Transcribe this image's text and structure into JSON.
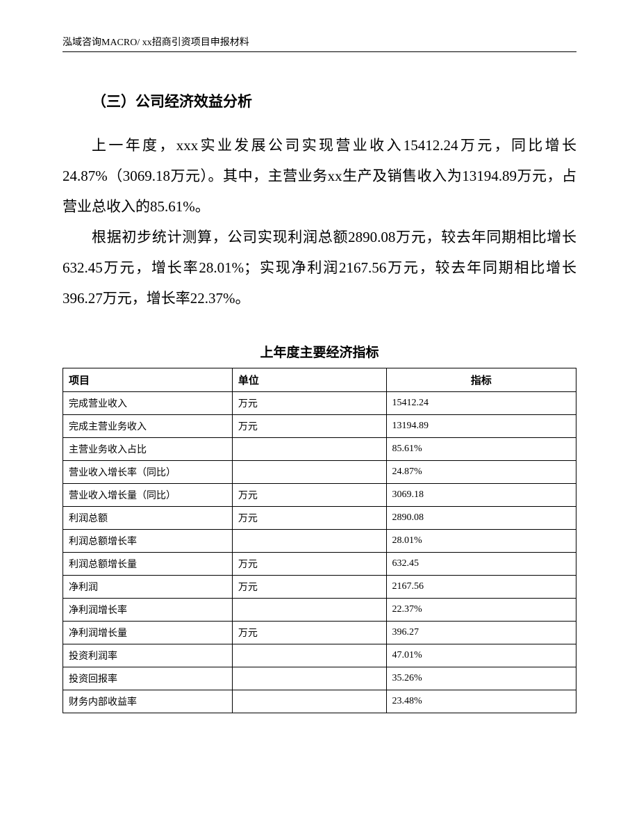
{
  "header": "泓域咨询MACRO/   xx招商引资项目申报材料",
  "section_heading": "（三）公司经济效益分析",
  "paragraphs": {
    "p1": "上一年度，xxx实业发展公司实现营业收入15412.24万元，同比增长24.87%（3069.18万元）。其中，主营业务xx生产及销售收入为13194.89万元，占营业总收入的85.61%。",
    "p2": "根据初步统计测算，公司实现利润总额2890.08万元，较去年同期相比增长632.45万元，增长率28.01%；实现净利润2167.56万元，较去年同期相比增长396.27万元，增长率22.37%。"
  },
  "table_title": "上年度主要经济指标",
  "table": {
    "headers": {
      "item": "项目",
      "unit": "单位",
      "value": "指标"
    },
    "rows": [
      {
        "item": "完成营业收入",
        "unit": "万元",
        "value": "15412.24"
      },
      {
        "item": "完成主营业务收入",
        "unit": "万元",
        "value": "13194.89"
      },
      {
        "item": "主营业务收入占比",
        "unit": "",
        "value": "85.61%"
      },
      {
        "item": "营业收入增长率（同比）",
        "unit": "",
        "value": "24.87%"
      },
      {
        "item": "营业收入增长量（同比）",
        "unit": "万元",
        "value": "3069.18"
      },
      {
        "item": "利润总额",
        "unit": "万元",
        "value": "2890.08"
      },
      {
        "item": "利润总额增长率",
        "unit": "",
        "value": "28.01%"
      },
      {
        "item": "利润总额增长量",
        "unit": "万元",
        "value": "632.45"
      },
      {
        "item": "净利润",
        "unit": "万元",
        "value": "2167.56"
      },
      {
        "item": "净利润增长率",
        "unit": "",
        "value": "22.37%"
      },
      {
        "item": "净利润增长量",
        "unit": "万元",
        "value": "396.27"
      },
      {
        "item": "投资利润率",
        "unit": "",
        "value": "47.01%"
      },
      {
        "item": "投资回报率",
        "unit": "",
        "value": "35.26%"
      },
      {
        "item": "财务内部收益率",
        "unit": "",
        "value": "23.48%"
      }
    ]
  }
}
